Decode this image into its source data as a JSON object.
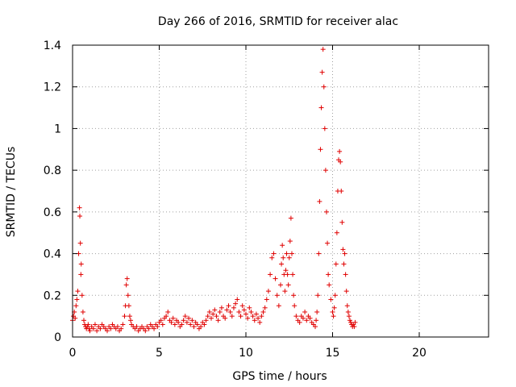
{
  "chart_data": {
    "type": "scatter",
    "title": "Day 266 of 2016, SRMTID for receiver alac",
    "xlabel": "GPS time / hours",
    "ylabel": "SRMTID / TECUs",
    "xlim": [
      0,
      24
    ],
    "ylim": [
      0,
      1.4
    ],
    "xticks": [
      0,
      5,
      10,
      15,
      20
    ],
    "xtick_labels": [
      "0",
      "5",
      "10",
      "15",
      "20"
    ],
    "yticks": [
      0,
      0.2,
      0.4,
      0.6,
      0.8,
      1,
      1.2,
      1.4
    ],
    "ytick_labels": [
      "0",
      "0.2",
      "0.4",
      "0.6",
      "0.8",
      "1",
      "1.2",
      "1.4"
    ],
    "grid": true,
    "marker": "+",
    "color": "#e00000",
    "series": [
      {
        "name": "SRMTID",
        "x": [
          0.0,
          0.05,
          0.1,
          0.15,
          0.2,
          0.25,
          0.3,
          0.35,
          0.4,
          0.42,
          0.45,
          0.48,
          0.5,
          0.55,
          0.6,
          0.65,
          0.7,
          0.75,
          0.8,
          0.85,
          0.9,
          0.95,
          1.0,
          1.1,
          1.2,
          1.3,
          1.4,
          1.5,
          1.6,
          1.7,
          1.8,
          1.9,
          2.0,
          2.1,
          2.2,
          2.3,
          2.4,
          2.5,
          2.6,
          2.7,
          2.8,
          2.9,
          3.0,
          3.05,
          3.1,
          3.15,
          3.2,
          3.25,
          3.3,
          3.35,
          3.4,
          3.5,
          3.6,
          3.7,
          3.8,
          3.9,
          4.0,
          4.1,
          4.2,
          4.3,
          4.4,
          4.5,
          4.6,
          4.7,
          4.8,
          4.9,
          5.0,
          5.1,
          5.2,
          5.3,
          5.4,
          5.5,
          5.6,
          5.7,
          5.8,
          5.9,
          6.0,
          6.1,
          6.2,
          6.3,
          6.4,
          6.5,
          6.6,
          6.7,
          6.8,
          6.9,
          7.0,
          7.1,
          7.2,
          7.3,
          7.4,
          7.5,
          7.6,
          7.7,
          7.8,
          7.9,
          8.0,
          8.1,
          8.2,
          8.3,
          8.4,
          8.5,
          8.6,
          8.7,
          8.8,
          8.9,
          9.0,
          9.1,
          9.2,
          9.3,
          9.4,
          9.5,
          9.6,
          9.7,
          9.8,
          9.9,
          10.0,
          10.1,
          10.2,
          10.3,
          10.4,
          10.5,
          10.6,
          10.7,
          10.8,
          10.9,
          11.0,
          11.1,
          11.2,
          11.3,
          11.4,
          11.5,
          11.6,
          11.7,
          11.8,
          11.9,
          12.0,
          12.05,
          12.1,
          12.15,
          12.2,
          12.25,
          12.3,
          12.35,
          12.4,
          12.45,
          12.5,
          12.55,
          12.6,
          12.65,
          12.7,
          12.75,
          12.8,
          12.9,
          13.0,
          13.1,
          13.2,
          13.3,
          13.4,
          13.5,
          13.6,
          13.7,
          13.8,
          13.9,
          14.0,
          14.05,
          14.1,
          14.15,
          14.2,
          14.25,
          14.3,
          14.35,
          14.4,
          14.45,
          14.5,
          14.55,
          14.6,
          14.65,
          14.7,
          14.75,
          14.8,
          14.9,
          15.0,
          15.05,
          15.1,
          15.15,
          15.2,
          15.25,
          15.3,
          15.35,
          15.4,
          15.45,
          15.5,
          15.55,
          15.6,
          15.65,
          15.7,
          15.75,
          15.8,
          15.85,
          15.9,
          15.95,
          16.0,
          16.05,
          16.1,
          16.15,
          16.2,
          16.25,
          16.3
        ],
        "y": [
          0.08,
          0.1,
          0.12,
          0.09,
          0.15,
          0.18,
          0.22,
          0.4,
          0.62,
          0.58,
          0.45,
          0.3,
          0.35,
          0.2,
          0.12,
          0.08,
          0.06,
          0.05,
          0.04,
          0.05,
          0.06,
          0.04,
          0.03,
          0.05,
          0.04,
          0.06,
          0.03,
          0.05,
          0.04,
          0.06,
          0.05,
          0.04,
          0.03,
          0.05,
          0.04,
          0.06,
          0.05,
          0.04,
          0.05,
          0.03,
          0.04,
          0.06,
          0.1,
          0.15,
          0.25,
          0.28,
          0.2,
          0.15,
          0.1,
          0.08,
          0.06,
          0.05,
          0.04,
          0.05,
          0.03,
          0.04,
          0.05,
          0.04,
          0.03,
          0.05,
          0.04,
          0.06,
          0.05,
          0.04,
          0.06,
          0.05,
          0.07,
          0.08,
          0.06,
          0.09,
          0.1,
          0.12,
          0.08,
          0.07,
          0.09,
          0.06,
          0.08,
          0.07,
          0.05,
          0.06,
          0.08,
          0.1,
          0.07,
          0.09,
          0.06,
          0.08,
          0.05,
          0.07,
          0.06,
          0.04,
          0.05,
          0.07,
          0.06,
          0.08,
          0.1,
          0.12,
          0.09,
          0.11,
          0.13,
          0.1,
          0.08,
          0.12,
          0.14,
          0.1,
          0.09,
          0.13,
          0.15,
          0.12,
          0.1,
          0.14,
          0.16,
          0.18,
          0.12,
          0.1,
          0.15,
          0.13,
          0.11,
          0.09,
          0.14,
          0.12,
          0.1,
          0.08,
          0.11,
          0.09,
          0.07,
          0.1,
          0.12,
          0.14,
          0.18,
          0.22,
          0.3,
          0.38,
          0.4,
          0.28,
          0.2,
          0.15,
          0.25,
          0.35,
          0.44,
          0.38,
          0.3,
          0.22,
          0.32,
          0.4,
          0.3,
          0.25,
          0.38,
          0.46,
          0.57,
          0.4,
          0.3,
          0.2,
          0.15,
          0.1,
          0.08,
          0.07,
          0.1,
          0.09,
          0.12,
          0.08,
          0.1,
          0.09,
          0.07,
          0.06,
          0.05,
          0.08,
          0.12,
          0.2,
          0.4,
          0.65,
          0.9,
          1.1,
          1.27,
          1.38,
          1.2,
          1.0,
          0.8,
          0.6,
          0.45,
          0.3,
          0.25,
          0.18,
          0.12,
          0.1,
          0.14,
          0.2,
          0.35,
          0.5,
          0.7,
          0.85,
          0.89,
          0.84,
          0.7,
          0.55,
          0.42,
          0.35,
          0.4,
          0.3,
          0.22,
          0.15,
          0.12,
          0.1,
          0.08,
          0.07,
          0.06,
          0.05,
          0.06,
          0.05,
          0.07
        ]
      }
    ]
  }
}
